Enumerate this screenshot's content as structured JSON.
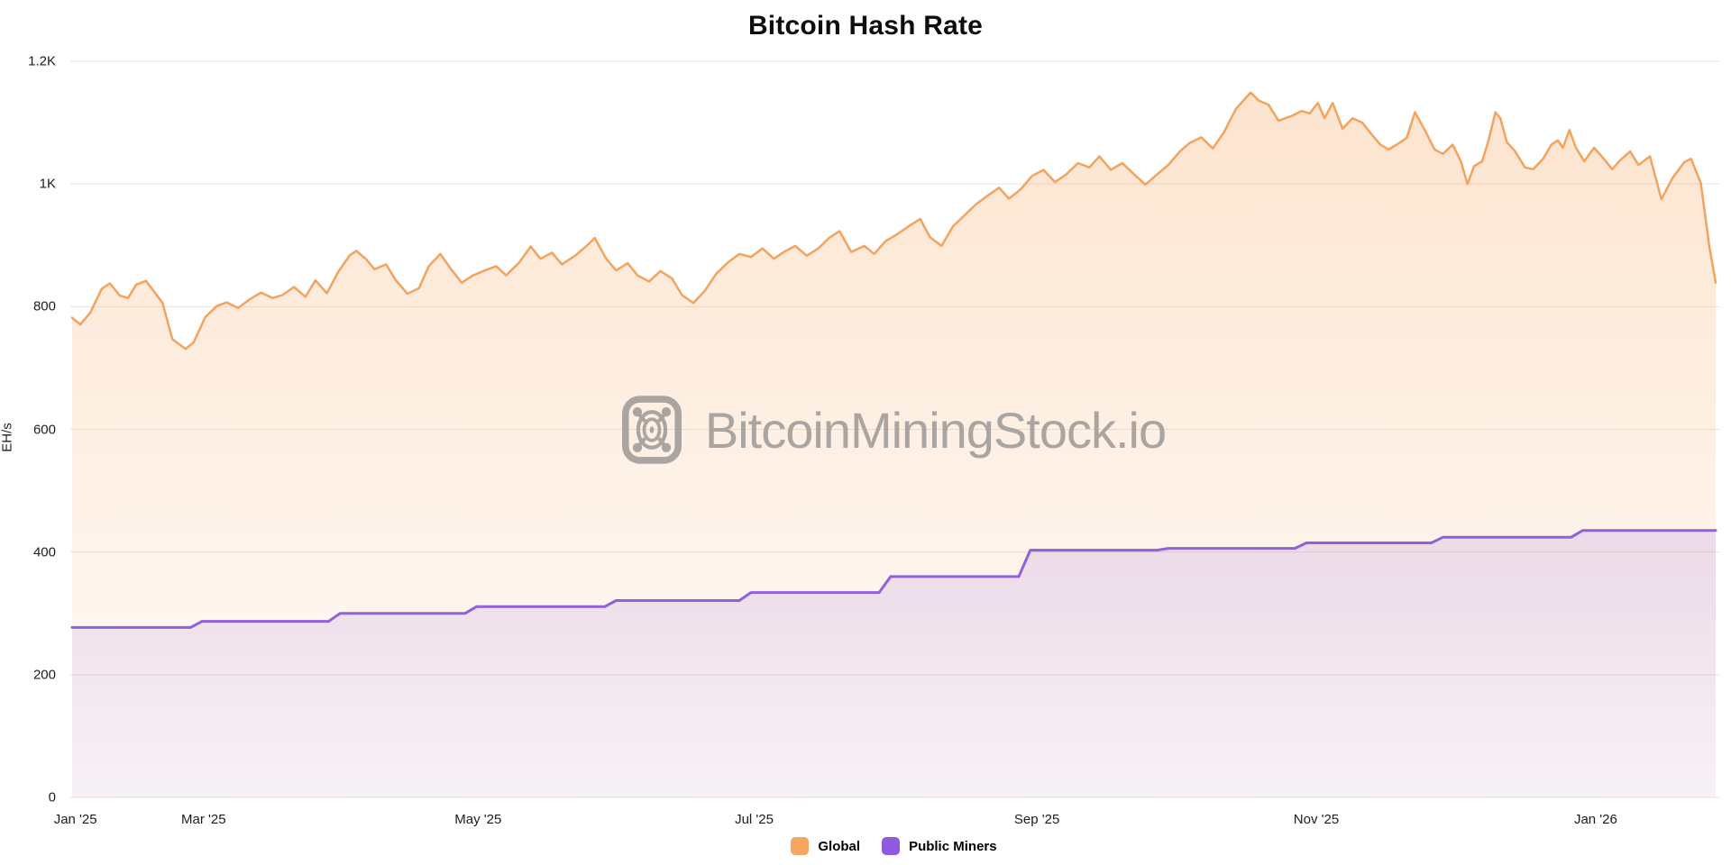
{
  "title": "Bitcoin Hash Rate",
  "watermark": {
    "text": "BitcoinMiningStock.io",
    "icon": "miner-fan-icon",
    "color": "#aba5a1"
  },
  "legend": {
    "items": [
      {
        "label": "Global",
        "color": "#f7a660"
      },
      {
        "label": "Public Miners",
        "color": "#9159e2"
      }
    ]
  },
  "chart_data": {
    "type": "area",
    "title": "Bitcoin Hash Rate",
    "xlabel": "",
    "ylabel": "EH/s",
    "ylim": [
      0,
      1200
    ],
    "grid": true,
    "legend_position": "bottom",
    "background": "#ffffff",
    "gridline_color": "#e7e3e0",
    "y_ticks": [
      {
        "value": 0,
        "label": "0"
      },
      {
        "value": 200,
        "label": "200"
      },
      {
        "value": 400,
        "label": "400"
      },
      {
        "value": 600,
        "label": "600"
      },
      {
        "value": 800,
        "label": "800"
      },
      {
        "value": 1000,
        "label": "1K"
      },
      {
        "value": 1200,
        "label": "1.2K"
      }
    ],
    "x_ticks": [
      {
        "label": "Jan '25",
        "pos": 0.002
      },
      {
        "label": "Mar '25",
        "pos": 0.08
      },
      {
        "label": "May '25",
        "pos": 0.247
      },
      {
        "label": "Jul '25",
        "pos": 0.415
      },
      {
        "label": "Sep '25",
        "pos": 0.587
      },
      {
        "label": "Nov '25",
        "pos": 0.757
      },
      {
        "label": "Jan '26",
        "pos": 0.927
      }
    ],
    "series": [
      {
        "name": "Global",
        "unit": "EH/s",
        "line_color": "#f4a35e",
        "line_width": 2.5,
        "fill_from": "rgba(246,166,95,0.30)",
        "fill_to": "rgba(246,166,95,0.03)",
        "points": [
          [
            0.0,
            782
          ],
          [
            0.005,
            771
          ],
          [
            0.011,
            790
          ],
          [
            0.018,
            829
          ],
          [
            0.023,
            838
          ],
          [
            0.029,
            818
          ],
          [
            0.034,
            814
          ],
          [
            0.039,
            836
          ],
          [
            0.045,
            842
          ],
          [
            0.05,
            824
          ],
          [
            0.055,
            806
          ],
          [
            0.061,
            747
          ],
          [
            0.069,
            731
          ],
          [
            0.074,
            742
          ],
          [
            0.081,
            783
          ],
          [
            0.088,
            801
          ],
          [
            0.094,
            807
          ],
          [
            0.101,
            798
          ],
          [
            0.108,
            812
          ],
          [
            0.115,
            823
          ],
          [
            0.122,
            814
          ],
          [
            0.128,
            819
          ],
          [
            0.135,
            832
          ],
          [
            0.142,
            816
          ],
          [
            0.148,
            843
          ],
          [
            0.155,
            822
          ],
          [
            0.162,
            857
          ],
          [
            0.169,
            884
          ],
          [
            0.173,
            891
          ],
          [
            0.179,
            877
          ],
          [
            0.184,
            861
          ],
          [
            0.191,
            869
          ],
          [
            0.197,
            843
          ],
          [
            0.204,
            821
          ],
          [
            0.211,
            830
          ],
          [
            0.217,
            866
          ],
          [
            0.224,
            886
          ],
          [
            0.23,
            863
          ],
          [
            0.237,
            839
          ],
          [
            0.244,
            851
          ],
          [
            0.251,
            859
          ],
          [
            0.258,
            866
          ],
          [
            0.264,
            851
          ],
          [
            0.272,
            872
          ],
          [
            0.279,
            898
          ],
          [
            0.285,
            878
          ],
          [
            0.292,
            888
          ],
          [
            0.298,
            869
          ],
          [
            0.306,
            883
          ],
          [
            0.313,
            899
          ],
          [
            0.318,
            912
          ],
          [
            0.325,
            878
          ],
          [
            0.331,
            859
          ],
          [
            0.338,
            871
          ],
          [
            0.344,
            851
          ],
          [
            0.351,
            841
          ],
          [
            0.358,
            858
          ],
          [
            0.365,
            846
          ],
          [
            0.371,
            819
          ],
          [
            0.378,
            806
          ],
          [
            0.385,
            826
          ],
          [
            0.392,
            854
          ],
          [
            0.399,
            872
          ],
          [
            0.406,
            886
          ],
          [
            0.413,
            881
          ],
          [
            0.42,
            895
          ],
          [
            0.427,
            878
          ],
          [
            0.433,
            889
          ],
          [
            0.44,
            899
          ],
          [
            0.447,
            883
          ],
          [
            0.454,
            895
          ],
          [
            0.461,
            913
          ],
          [
            0.467,
            923
          ],
          [
            0.474,
            889
          ],
          [
            0.482,
            899
          ],
          [
            0.488,
            886
          ],
          [
            0.495,
            907
          ],
          [
            0.502,
            918
          ],
          [
            0.509,
            931
          ],
          [
            0.516,
            943
          ],
          [
            0.522,
            913
          ],
          [
            0.529,
            899
          ],
          [
            0.536,
            931
          ],
          [
            0.543,
            949
          ],
          [
            0.55,
            967
          ],
          [
            0.557,
            981
          ],
          [
            0.564,
            994
          ],
          [
            0.57,
            976
          ],
          [
            0.577,
            991
          ],
          [
            0.584,
            1013
          ],
          [
            0.591,
            1023
          ],
          [
            0.598,
            1003
          ],
          [
            0.605,
            1016
          ],
          [
            0.612,
            1034
          ],
          [
            0.619,
            1027
          ],
          [
            0.625,
            1045
          ],
          [
            0.632,
            1023
          ],
          [
            0.639,
            1034
          ],
          [
            0.646,
            1016
          ],
          [
            0.653,
            999
          ],
          [
            0.659,
            1013
          ],
          [
            0.667,
            1031
          ],
          [
            0.674,
            1053
          ],
          [
            0.68,
            1067
          ],
          [
            0.687,
            1076
          ],
          [
            0.694,
            1058
          ],
          [
            0.701,
            1085
          ],
          [
            0.708,
            1122
          ],
          [
            0.717,
            1149
          ],
          [
            0.722,
            1136
          ],
          [
            0.728,
            1129
          ],
          [
            0.734,
            1103
          ],
          [
            0.743,
            1112
          ],
          [
            0.748,
            1119
          ],
          [
            0.753,
            1115
          ],
          [
            0.758,
            1132
          ],
          [
            0.762,
            1107
          ],
          [
            0.767,
            1132
          ],
          [
            0.773,
            1090
          ],
          [
            0.779,
            1107
          ],
          [
            0.785,
            1100
          ],
          [
            0.79,
            1083
          ],
          [
            0.796,
            1064
          ],
          [
            0.801,
            1056
          ],
          [
            0.807,
            1066
          ],
          [
            0.812,
            1075
          ],
          [
            0.817,
            1117
          ],
          [
            0.823,
            1088
          ],
          [
            0.829,
            1056
          ],
          [
            0.834,
            1049
          ],
          [
            0.84,
            1064
          ],
          [
            0.845,
            1037
          ],
          [
            0.849,
            1000
          ],
          [
            0.853,
            1029
          ],
          [
            0.858,
            1037
          ],
          [
            0.862,
            1073
          ],
          [
            0.866,
            1117
          ],
          [
            0.869,
            1107
          ],
          [
            0.873,
            1068
          ],
          [
            0.878,
            1053
          ],
          [
            0.884,
            1027
          ],
          [
            0.889,
            1024
          ],
          [
            0.895,
            1041
          ],
          [
            0.9,
            1064
          ],
          [
            0.904,
            1071
          ],
          [
            0.907,
            1059
          ],
          [
            0.911,
            1088
          ],
          [
            0.915,
            1059
          ],
          [
            0.92,
            1037
          ],
          [
            0.926,
            1059
          ],
          [
            0.931,
            1044
          ],
          [
            0.937,
            1024
          ],
          [
            0.942,
            1039
          ],
          [
            0.948,
            1053
          ],
          [
            0.953,
            1031
          ],
          [
            0.96,
            1045
          ],
          [
            0.967,
            975
          ],
          [
            0.974,
            1011
          ],
          [
            0.981,
            1036
          ],
          [
            0.985,
            1041
          ],
          [
            0.991,
            1001
          ],
          [
            0.996,
            901
          ],
          [
            1.0,
            839
          ]
        ]
      },
      {
        "name": "Public Miners",
        "unit": "EH/s",
        "line_color": "#9161db",
        "line_width": 3,
        "fill_from": "rgba(146,98,217,0.17)",
        "fill_to": "rgba(146,98,217,0.07)",
        "step_levels_by_month": {
          "Jan '25": 277,
          "Mar '25": 287,
          "Apr '25": 300,
          "May '25": 311,
          "Jun '25": 321,
          "Jul '25": 334,
          "Aug '25": 360,
          "Sep '25": 403,
          "Oct '25": 406,
          "Nov '25": 415,
          "Dec '25": 424,
          "Jan '26": 435
        },
        "points": [
          [
            0.0,
            277
          ],
          [
            0.072,
            277
          ],
          [
            0.079,
            287
          ],
          [
            0.156,
            287
          ],
          [
            0.163,
            300
          ],
          [
            0.239,
            300
          ],
          [
            0.246,
            311
          ],
          [
            0.324,
            311
          ],
          [
            0.331,
            321
          ],
          [
            0.406,
            321
          ],
          [
            0.413,
            334
          ],
          [
            0.491,
            334
          ],
          [
            0.498,
            360
          ],
          [
            0.576,
            360
          ],
          [
            0.583,
            403
          ],
          [
            0.66,
            403
          ],
          [
            0.667,
            406
          ],
          [
            0.744,
            406
          ],
          [
            0.751,
            415
          ],
          [
            0.827,
            415
          ],
          [
            0.834,
            424
          ],
          [
            0.912,
            424
          ],
          [
            0.919,
            435
          ],
          [
            1.0,
            435
          ]
        ]
      }
    ]
  }
}
